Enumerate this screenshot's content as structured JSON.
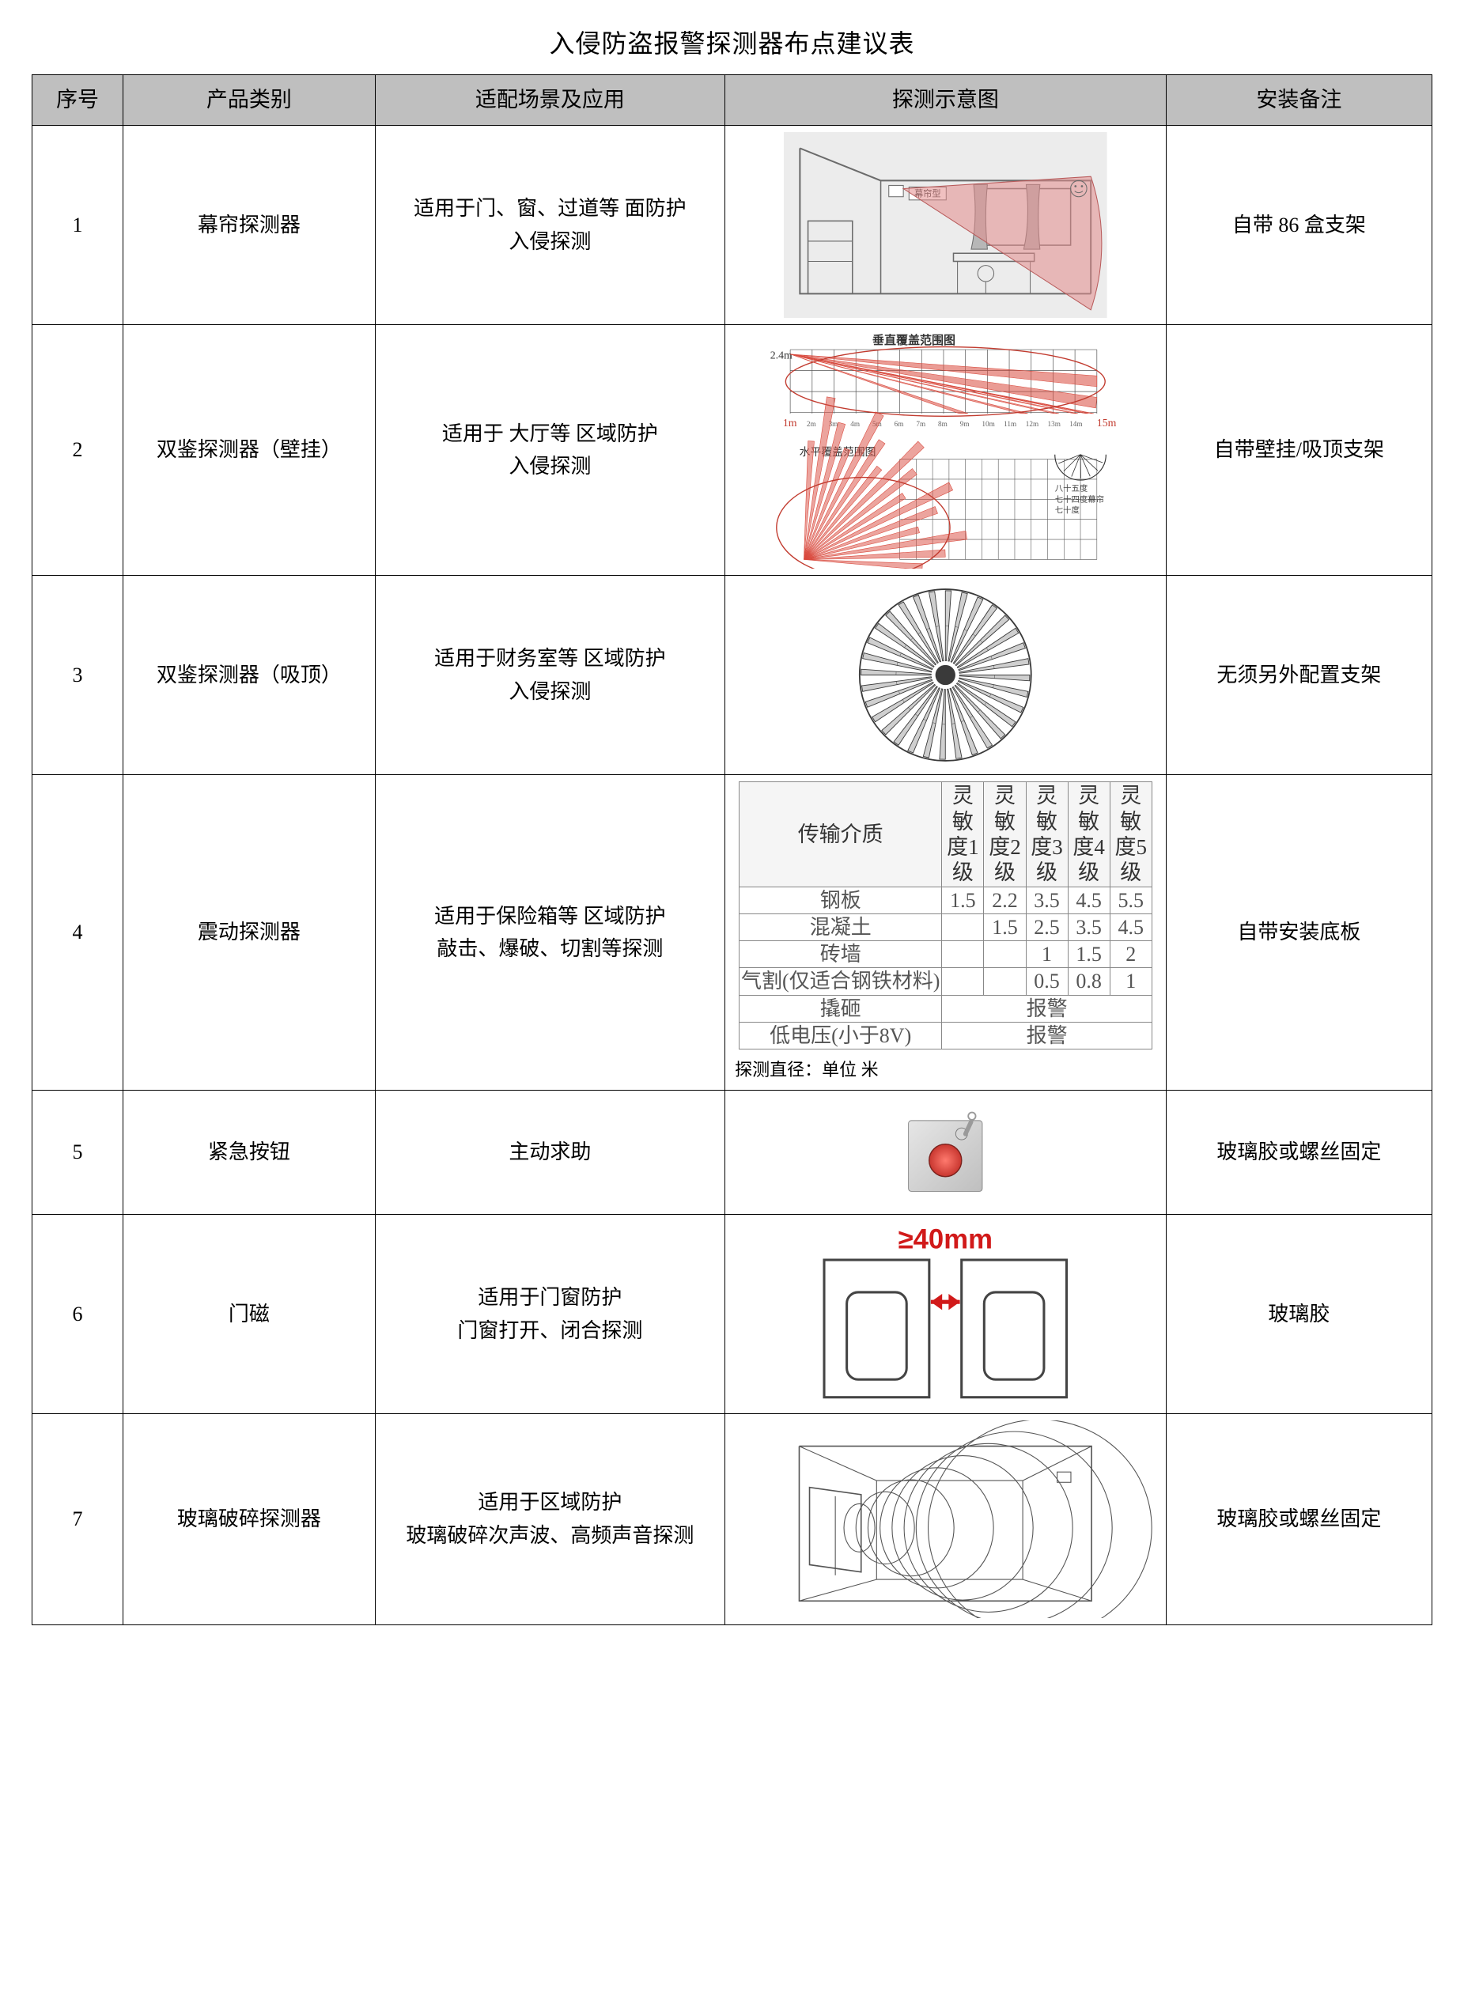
{
  "title": "入侵防盗报警探测器布点建议表",
  "headers": {
    "num": "序号",
    "category": "产品类别",
    "scene": "适配场景及应用",
    "diagram": "探测示意图",
    "note": "安装备注"
  },
  "rows": [
    {
      "num": "1",
      "category": "幕帘探测器",
      "scene": "适用于门、窗、过道等 面防护\n入侵探测",
      "note": "自带 86 盒支架",
      "diagram": {
        "type": "curtain-room",
        "label": "幕帘型",
        "fan_color": "#e38d8d",
        "fan_opacity": 0.55,
        "stroke": "#6b6b6b",
        "bg": "#ececec"
      }
    },
    {
      "num": "2",
      "category": "双鉴探测器（壁挂）",
      "scene": "适用于 大厅等 区域防护\n入侵探测",
      "note": "自带壁挂/吸顶支架",
      "diagram": {
        "type": "wall-dual",
        "title_v": "垂直覆盖范围图",
        "title_h": "水平覆盖范围图",
        "beam_color": "#d94a3e",
        "grid_color": "#555555",
        "accent": "#c23b2f",
        "y_label": "2.4m",
        "x_label_start": "1m",
        "x_ticks": [
          "2m",
          "3m",
          "4m",
          "5m",
          "6m",
          "7m",
          "8m",
          "9m",
          "10m",
          "11m",
          "12m",
          "13m",
          "14m"
        ],
        "x_label_end": "15m",
        "side_note": [
          "八十五度",
          "七十四度幕帘",
          "七十度"
        ]
      }
    },
    {
      "num": "3",
      "category": "双鉴探测器（吸顶）",
      "scene": "适用于财务室等 区域防护\n入侵探测",
      "note": "无须另外配置支架",
      "diagram": {
        "type": "ceiling-radial",
        "stroke": "#3a3a3a",
        "fill": "#cfcfcf",
        "spokes": 32
      }
    },
    {
      "num": "4",
      "category": "震动探测器",
      "scene": "适用于保险箱等 区域防护\n敲击、爆破、切割等探测",
      "note": "自带安装底板",
      "diagram": {
        "type": "sensitivity-table",
        "caption": "探测直径：单位 米",
        "columns": [
          "传输介质",
          "灵敏度1级",
          "灵敏度2级",
          "灵敏度3级",
          "灵敏度4级",
          "灵敏度5级"
        ],
        "data_rows": [
          [
            "钢板",
            "1.5",
            "2.2",
            "3.5",
            "4.5",
            "5.5"
          ],
          [
            "混凝土",
            "",
            "1.5",
            "2.5",
            "3.5",
            "4.5"
          ],
          [
            "砖墙",
            "",
            "",
            "1",
            "1.5",
            "2"
          ],
          [
            "气割(仅适合钢铁材料)",
            "",
            "",
            "0.5",
            "0.8",
            "1"
          ]
        ],
        "span_rows": [
          [
            "撬砸",
            "报警"
          ],
          [
            "低电压(小于8V)",
            "报警"
          ]
        ],
        "text_color": "#555555",
        "border_color": "#888888"
      }
    },
    {
      "num": "5",
      "category": "紧急按钮",
      "scene": "主动求助",
      "note": "玻璃胶或螺丝固定",
      "diagram": {
        "type": "panic-button",
        "body_color": "#bfbfbf",
        "button_color": "#c8362f",
        "key_color": "#9a9a9a"
      }
    },
    {
      "num": "6",
      "category": "门磁",
      "scene": "适用于门窗防护\n门窗打开、闭合探测",
      "note": "玻璃胶",
      "diagram": {
        "type": "door-contact",
        "gap_text": "≥40mm",
        "text_color": "#d11a1a",
        "arrow_color": "#d11a1a",
        "door_stroke": "#444444"
      }
    },
    {
      "num": "7",
      "category": "玻璃破碎探测器",
      "scene": "适用于区域防护\n玻璃破碎次声波、高频声音探测",
      "note": "玻璃胶或螺丝固定",
      "diagram": {
        "type": "glass-break",
        "stroke": "#555555",
        "rings": 8
      }
    }
  ]
}
